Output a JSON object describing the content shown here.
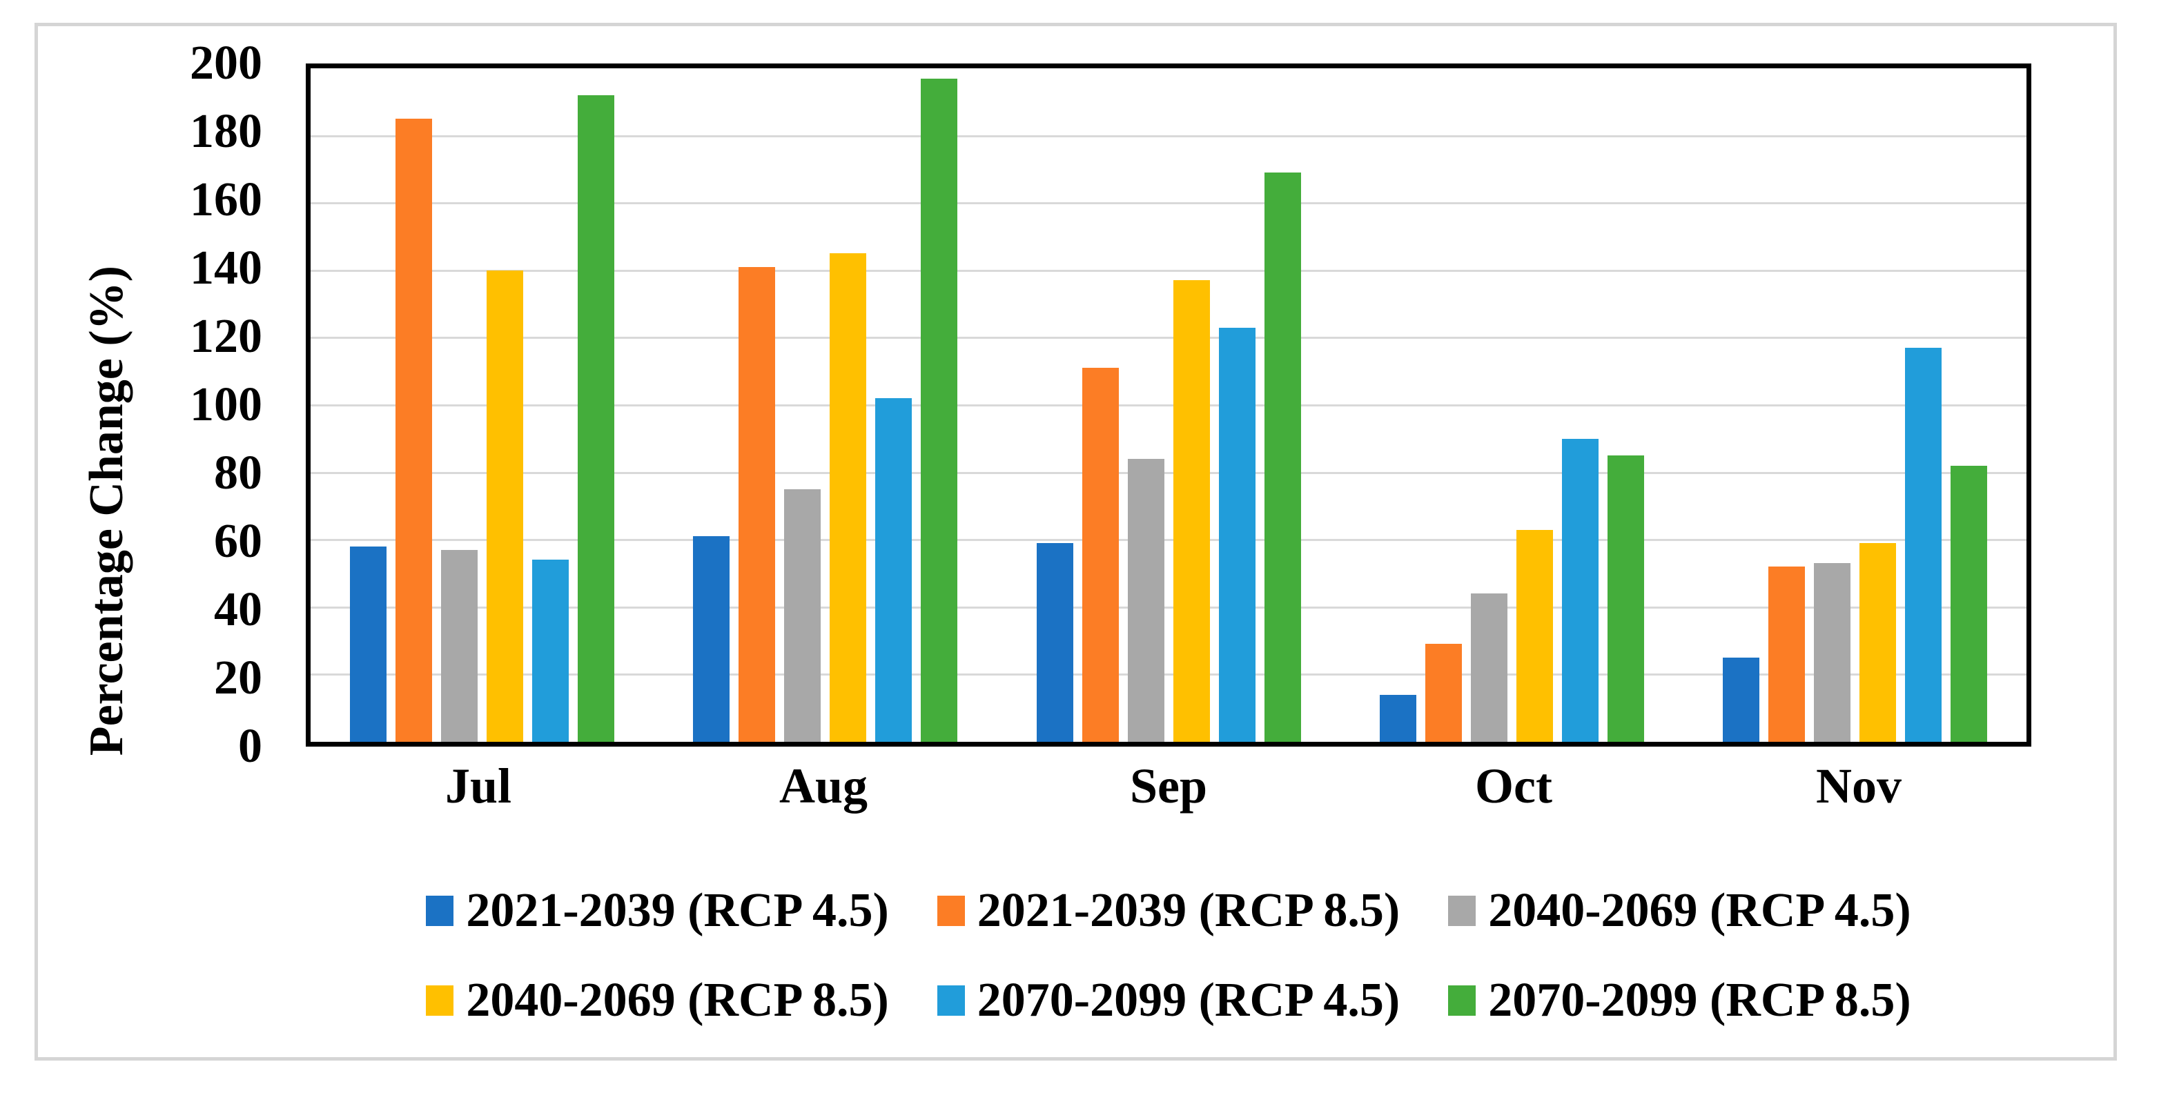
{
  "chart_data": {
    "type": "bar",
    "title": "",
    "xlabel": "",
    "ylabel": "Percentage Change (%)",
    "ylim": [
      0,
      200
    ],
    "ytick_step": 20,
    "yticks": [
      0,
      20,
      40,
      60,
      80,
      100,
      120,
      140,
      160,
      180,
      200
    ],
    "grid": "horizontal",
    "grid_color": "#D9D9D9",
    "axis_color": "#000000",
    "frame_color": "#D5D5D5",
    "legend_position": "bottom",
    "legend_rows": 2,
    "categories": [
      "Jul",
      "Aug",
      "Sep",
      "Oct",
      "Nov"
    ],
    "series": [
      {
        "name": "2021-2039 (RCP 4.5)",
        "color": "#1B72C4",
        "values": [
          58,
          61,
          59,
          14,
          25
        ]
      },
      {
        "name": "2021-2039 (RCP 8.5)",
        "color": "#FC7D25",
        "values": [
          185,
          141,
          111,
          29,
          52
        ]
      },
      {
        "name": "2040-2069 (RCP 4.5)",
        "color": "#A8A8A8",
        "values": [
          57,
          75,
          84,
          44,
          53
        ]
      },
      {
        "name": "2040-2069 (RCP 8.5)",
        "color": "#FFC000",
        "values": [
          140,
          145,
          137,
          63,
          59
        ]
      },
      {
        "name": "2070-2099 (RCP 4.5)",
        "color": "#219DDA",
        "values": [
          54,
          102,
          123,
          90,
          117
        ]
      },
      {
        "name": "2070-2099 (RCP 8.5)",
        "color": "#44AD3B",
        "values": [
          192,
          197,
          169,
          85,
          82
        ]
      }
    ]
  }
}
